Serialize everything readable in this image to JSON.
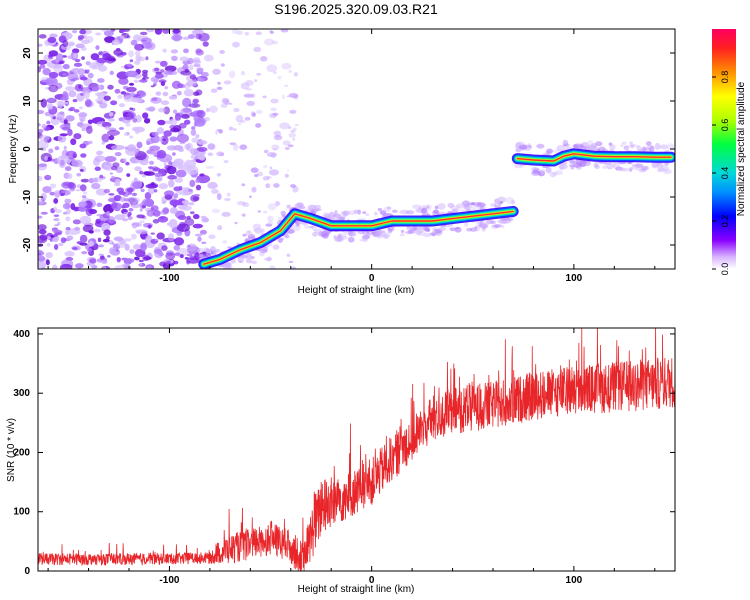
{
  "title": "S196.2025.320.09.03.R21",
  "colors": {
    "line": "#e8262a",
    "spectrum_strong": "#ff3030",
    "noise_purple": "#7a2be0",
    "axis": "#000000"
  },
  "chart_data": [
    {
      "type": "heatmap",
      "name": "spectrogram",
      "xlabel": "Height of straight line (km)",
      "ylabel": "Frequency (Hz)",
      "xlim": [
        -165,
        150
      ],
      "ylim": [
        -25,
        25
      ],
      "xticks": [
        -100,
        0,
        100
      ],
      "xtick_labels": [
        "-100",
        "0",
        "100"
      ],
      "yticks": [
        -20,
        -10,
        0,
        10,
        20
      ],
      "ytick_labels": [
        "-20",
        "-10",
        "0",
        "10",
        "20"
      ],
      "colorbar": {
        "label": "Normalized spectral amplitude",
        "range": [
          0,
          1
        ],
        "ticks": [
          0.0,
          0.2,
          0.4,
          0.6,
          0.8
        ],
        "tick_labels": [
          "0.0",
          "0.2",
          "0.4",
          "0.6",
          "0.8"
        ],
        "colormap": [
          "#ffffff",
          "#8a00ff",
          "#0000ff",
          "#00c8ff",
          "#00ff80",
          "#c8ff00",
          "#ffff00",
          "#ff8000",
          "#ff0040"
        ]
      },
      "ridge": {
        "x": [
          -83,
          -75,
          -65,
          -55,
          -45,
          -38,
          -30,
          -20,
          -10,
          0,
          10,
          20,
          30,
          40,
          50,
          60,
          70,
          72,
          80,
          90,
          95,
          100,
          110,
          120,
          130,
          140,
          148
        ],
        "y": [
          -24,
          -23,
          -21,
          -19.5,
          -17,
          -13.5,
          -14.5,
          -16,
          -16,
          -16,
          -15,
          -15,
          -15,
          -14.5,
          -14,
          -13.5,
          -13,
          -2,
          -2.3,
          -2.5,
          -1.5,
          -1,
          -1.5,
          -1.6,
          -1.6,
          -1.7,
          -1.7
        ]
      }
    },
    {
      "type": "line",
      "name": "snr",
      "xlabel": "Height of straight line (km)",
      "ylabel": "SNR (10 * v/v)",
      "xlim": [
        -165,
        150
      ],
      "ylim": [
        0,
        410
      ],
      "xticks": [
        -100,
        0,
        100
      ],
      "xtick_labels": [
        "-100",
        "0",
        "100"
      ],
      "yticks": [
        0,
        100,
        200,
        300,
        400
      ],
      "ytick_labels": [
        "0",
        "100",
        "200",
        "300",
        "400"
      ],
      "trend": {
        "x": [
          -165,
          -120,
          -80,
          -73,
          -60,
          -50,
          -40,
          -34,
          -28,
          -24,
          -20,
          -10,
          0,
          10,
          20,
          30,
          40,
          60,
          80,
          100,
          120,
          140,
          150
        ],
        "y": [
          20,
          20,
          22,
          35,
          45,
          55,
          40,
          18,
          80,
          110,
          115,
          130,
          150,
          190,
          225,
          255,
          270,
          280,
          295,
          305,
          310,
          315,
          320
        ]
      },
      "noise_amplitude": {
        "x": [
          -165,
          -80,
          -73,
          -34,
          -28,
          -10,
          20,
          60,
          150
        ],
        "y": [
          10,
          10,
          25,
          30,
          50,
          40,
          40,
          40,
          45
        ]
      }
    }
  ]
}
